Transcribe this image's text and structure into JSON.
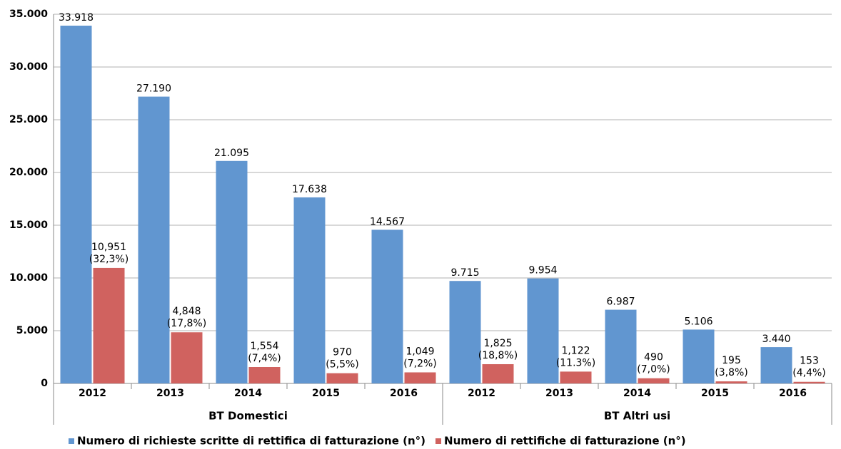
{
  "chart_data": {
    "type": "bar",
    "categories": [
      "2012",
      "2013",
      "2014",
      "2015",
      "2016",
      "2012",
      "2013",
      "2014",
      "2015",
      "2016"
    ],
    "group_labels": [
      "BT Domestici",
      "BT Altri usi"
    ],
    "series": [
      {
        "name": "Numero di richieste scritte di rettifica di fatturazione (n°)",
        "color": "#6196d0",
        "values": [
          33918,
          27190,
          21095,
          17638,
          14567,
          9715,
          9954,
          6987,
          5106,
          3440
        ],
        "value_labels": [
          "33.918",
          "27.190",
          "21.095",
          "17.638",
          "14.567",
          "9.715",
          "9.954",
          "6.987",
          "5.106",
          "3.440"
        ]
      },
      {
        "name": "Numero di rettifiche di fatturazione (n°)",
        "color": "#d0625f",
        "values": [
          10951,
          4848,
          1554,
          970,
          1049,
          1825,
          1122,
          490,
          195,
          153
        ],
        "value_labels": [
          [
            "10,951",
            "(32,3%)"
          ],
          [
            "4,848",
            "(17,8%)"
          ],
          [
            "1,554",
            "(7,4%)"
          ],
          [
            "970",
            "(5,5%)"
          ],
          [
            "1,049",
            "(7,2%)"
          ],
          [
            "1,825",
            "(18,8%)"
          ],
          [
            "1,122",
            "(11.3%)"
          ],
          [
            "490",
            "(7,0%)"
          ],
          [
            "195",
            "(3,8%)"
          ],
          [
            "153",
            "(4,4%)"
          ]
        ]
      }
    ],
    "ylim": [
      0,
      35000
    ],
    "yticks": [
      0,
      {
        "value": 5000,
        "label": "5.000"
      },
      {
        "value": 10000,
        "label": "10.000"
      },
      {
        "value": 15000,
        "label": "15.000"
      },
      {
        "value": 20000,
        "label": "20.000"
      },
      {
        "value": 25000,
        "label": "25.000"
      },
      {
        "value": 30000,
        "label": "30.000"
      },
      {
        "value": 35000,
        "label": "35.000"
      }
    ],
    "grid": true,
    "legend": "bottom"
  }
}
